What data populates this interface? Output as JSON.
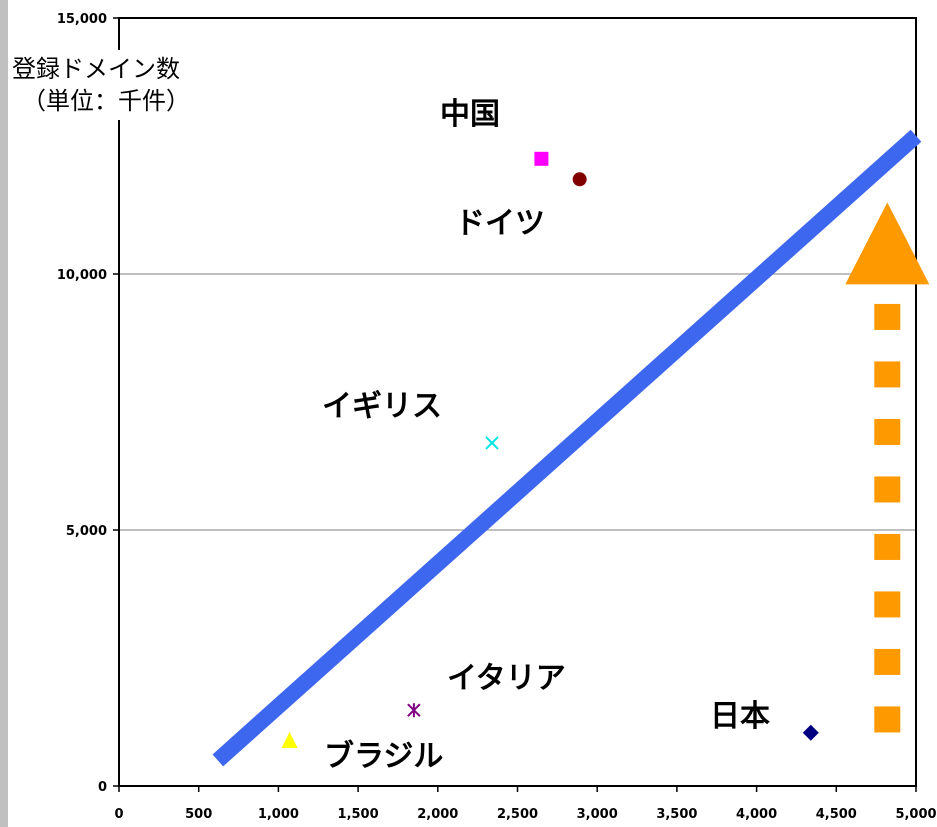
{
  "chart_data": {
    "type": "scatter",
    "ylabel_lines": [
      "登録ドメイン数",
      "（単位：千件）"
    ],
    "xlim": [
      0,
      5000
    ],
    "ylim": [
      0,
      15000
    ],
    "x_ticks": [
      "0",
      "500",
      "1,000",
      "1,500",
      "2,000",
      "2,500",
      "3,000",
      "3,500",
      "4,000",
      "4,500",
      "5,000"
    ],
    "x_tick_values": [
      0,
      500,
      1000,
      1500,
      2000,
      2500,
      3000,
      3500,
      4000,
      4500,
      5000
    ],
    "y_ticks": [
      "0",
      "5,000",
      "10,000",
      "15,000"
    ],
    "y_tick_values": [
      0,
      5000,
      10000,
      15000
    ],
    "grid": "horizontal",
    "points": [
      {
        "label": "中国",
        "x": 2650,
        "y": 12250,
        "marker": "square",
        "color": "#ff00ff"
      },
      {
        "label": "ドイツ",
        "x": 2890,
        "y": 11850,
        "marker": "circle",
        "color": "#800000"
      },
      {
        "label": "イギリス",
        "x": 2340,
        "y": 6700,
        "marker": "x",
        "color": "#00e5e5"
      },
      {
        "label": "イタリア",
        "x": 1850,
        "y": 1480,
        "marker": "star",
        "color": "#800080"
      },
      {
        "label": "ブラジル",
        "x": 1070,
        "y": 880,
        "marker": "triangle",
        "color": "#ffff00"
      },
      {
        "label": "日本",
        "x": 4340,
        "y": 1040,
        "marker": "diamond",
        "color": "#000080"
      }
    ],
    "trend_line": {
      "x": [
        620,
        5000
      ],
      "y": [
        500,
        12700
      ],
      "color": "#3e67f0"
    },
    "arrow": {
      "x": 4820,
      "y_from": 1300,
      "y_to": 11400,
      "color": "#ff9900"
    }
  }
}
